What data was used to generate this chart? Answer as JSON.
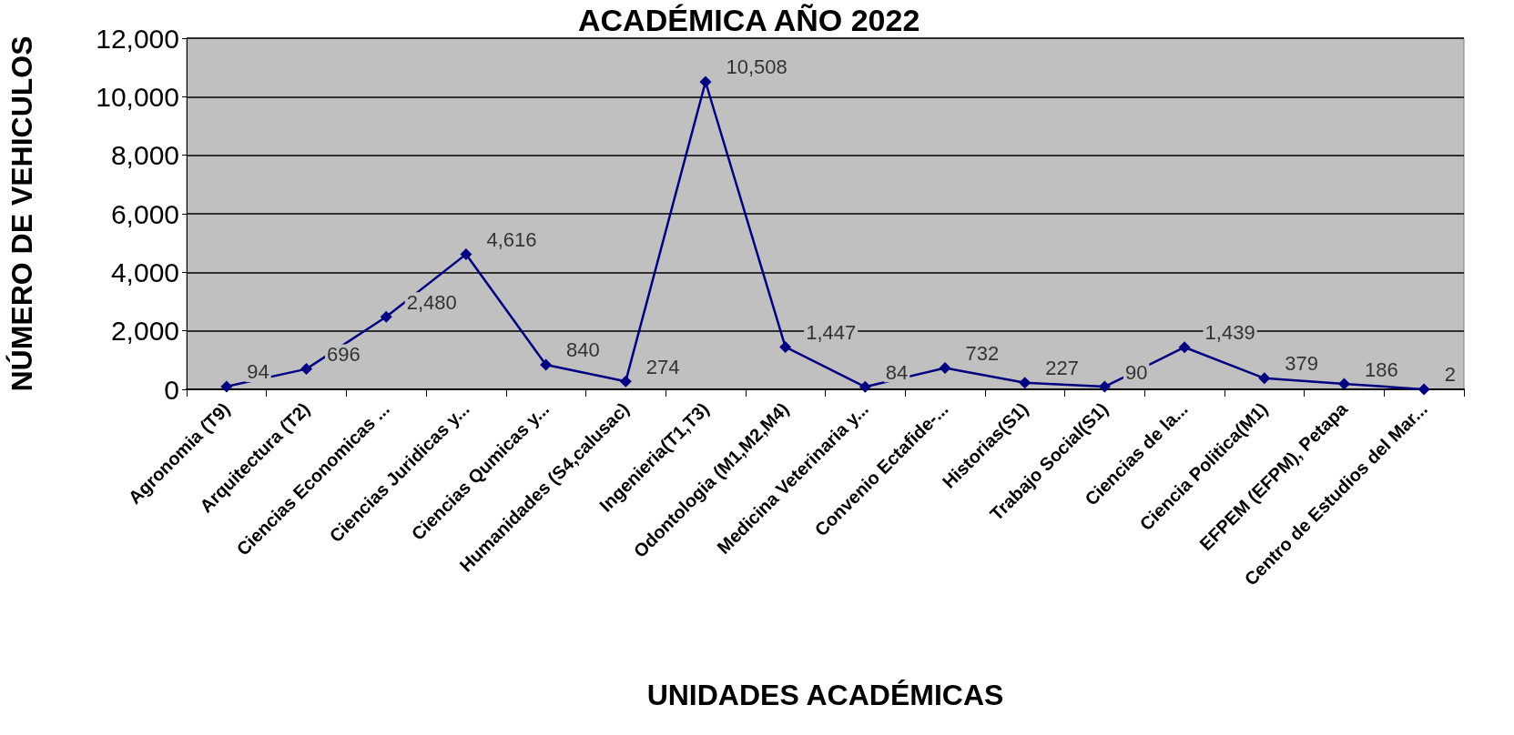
{
  "chart_data": {
    "type": "line",
    "title": "ACADÉMICA AÑO 2022",
    "xlabel": "UNIDADES ACADÉMICAS",
    "ylabel": "NÚMERO DE VEHICULOS",
    "categories": [
      "Agronomia (T9)",
      "Arquitectura (T2)",
      "Ciencias Economicas ...",
      "Ciencias Juridicas y...",
      "Ciencias Qumicas y...",
      "Humanidades (S4,calusac)",
      "Ingenieria(T1,T3)",
      "Odontologia (M1,M2,M4)",
      "Medicina Veterinaria y...",
      "Convenio Ectafide-...",
      "Historias(S1)",
      "Trabajo Social(S1)",
      "Ciencias de la...",
      "Ciencia Politica(M1)",
      "EFPEM (EFPM), Petapa",
      "Centro de Estudios del Mar..."
    ],
    "series": [
      {
        "color": "#000080",
        "values": [
          94,
          696,
          2480,
          4616,
          840,
          274,
          10508,
          1447,
          84,
          732,
          227,
          90,
          1439,
          379,
          186,
          2
        ],
        "value_labels": [
          "94",
          "696",
          "2,480",
          "4,616",
          "840",
          "274",
          "10,508",
          "1,447",
          "84",
          "732",
          "227",
          "90",
          "1,439",
          "379",
          "186",
          "2"
        ]
      }
    ],
    "ylim": [
      0,
      12000
    ],
    "yticks": [
      0,
      {
        "value": 2000,
        "label": "2,000"
      },
      {
        "value": 4000,
        "label": "4,000"
      },
      {
        "value": 6000,
        "label": "6,000"
      },
      {
        "value": 8000,
        "label": "8,000"
      },
      {
        "value": 10000,
        "label": "10,000"
      },
      {
        "value": 12000,
        "label": "12,000"
      }
    ],
    "grid": "y",
    "marker": "diamond",
    "line_style": "solid"
  }
}
